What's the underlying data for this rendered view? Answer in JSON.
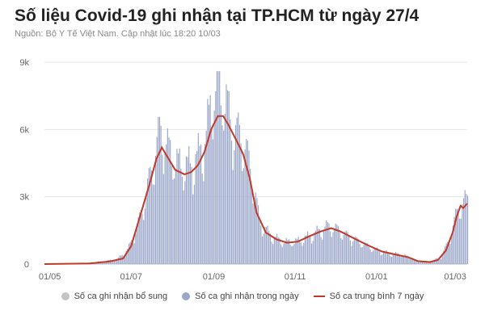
{
  "header": {
    "title": "Số liệu Covid-19 ghi nhận tại TP.HCM từ ngày 27/4",
    "source": "Nguồn: Bộ Y Tế Việt Nam. Cập nhật lúc 18:20 10/03"
  },
  "legend": [
    {
      "label": "Số ca ghi nhận bổ sung",
      "color": "#c4c4c4",
      "kind": "dot"
    },
    {
      "label": "Số ca ghi nhận trong ngày",
      "color": "#9aa7c9",
      "kind": "dot"
    },
    {
      "label": "Số ca trung bình 7 ngày",
      "color": "#c0392b",
      "kind": "line"
    }
  ],
  "chart_data": {
    "type": "bar",
    "x_start": "2021-04-27",
    "x_end": "2022-03-10",
    "ylim": [
      0,
      9000
    ],
    "y_ticks": [
      {
        "value": 0,
        "label": "0"
      },
      {
        "value": 3000,
        "label": "3k"
      },
      {
        "value": 6000,
        "label": "6k"
      },
      {
        "value": 9000,
        "label": "9k"
      }
    ],
    "x_ticks": [
      {
        "date": "2021-05-01",
        "label": "01/05"
      },
      {
        "date": "2021-07-01",
        "label": "01/07"
      },
      {
        "date": "2021-09-01",
        "label": "01/09"
      },
      {
        "date": "2021-11-01",
        "label": "01/11"
      },
      {
        "date": "2022-01-01",
        "label": "01/01"
      },
      {
        "date": "2022-03-01",
        "label": "01/03"
      }
    ],
    "grid": true,
    "legend_position": "bottom",
    "series": [
      {
        "name": "Số ca ghi nhận trong ngày",
        "color": "#9aa7c9",
        "points": [
          [
            "2021-04-27",
            0
          ],
          [
            "2021-05-15",
            10
          ],
          [
            "2021-05-31",
            60
          ],
          [
            "2021-06-10",
            120
          ],
          [
            "2021-06-20",
            200
          ],
          [
            "2021-06-28",
            600
          ],
          [
            "2021-07-05",
            1500
          ],
          [
            "2021-07-12",
            3000
          ],
          [
            "2021-07-18",
            4500
          ],
          [
            "2021-07-22",
            5600
          ],
          [
            "2021-07-26",
            5200
          ],
          [
            "2021-08-01",
            4400
          ],
          [
            "2021-08-08",
            4100
          ],
          [
            "2021-08-15",
            4200
          ],
          [
            "2021-08-20",
            4600
          ],
          [
            "2021-08-25",
            5200
          ],
          [
            "2021-08-29",
            6500
          ],
          [
            "2021-09-02",
            7500
          ],
          [
            "2021-09-06",
            7200
          ],
          [
            "2021-09-10",
            6800
          ],
          [
            "2021-09-15",
            5600
          ],
          [
            "2021-09-20",
            5500
          ],
          [
            "2021-09-25",
            4800
          ],
          [
            "2021-09-30",
            3500
          ],
          [
            "2021-10-05",
            1800
          ],
          [
            "2021-10-12",
            1300
          ],
          [
            "2021-10-20",
            1000
          ],
          [
            "2021-10-28",
            900
          ],
          [
            "2021-11-05",
            1000
          ],
          [
            "2021-11-15",
            1300
          ],
          [
            "2021-11-25",
            1600
          ],
          [
            "2021-12-01",
            1500
          ],
          [
            "2021-12-10",
            1200
          ],
          [
            "2021-12-20",
            900
          ],
          [
            "2021-12-31",
            600
          ],
          [
            "2022-01-10",
            450
          ],
          [
            "2022-01-20",
            400
          ],
          [
            "2022-01-31",
            150
          ],
          [
            "2022-02-10",
            100
          ],
          [
            "2022-02-18",
            300
          ],
          [
            "2022-02-24",
            1000
          ],
          [
            "2022-03-01",
            2000
          ],
          [
            "2022-03-05",
            2600
          ],
          [
            "2022-03-10",
            2700
          ]
        ]
      },
      {
        "name": "Số ca trung bình 7 ngày",
        "color": "#c0392b",
        "points": [
          [
            "2021-04-27",
            0
          ],
          [
            "2021-05-31",
            30
          ],
          [
            "2021-06-15",
            120
          ],
          [
            "2021-06-25",
            250
          ],
          [
            "2021-07-01",
            800
          ],
          [
            "2021-07-08",
            2200
          ],
          [
            "2021-07-15",
            3600
          ],
          [
            "2021-07-20",
            4700
          ],
          [
            "2021-07-24",
            5200
          ],
          [
            "2021-07-28",
            4800
          ],
          [
            "2021-08-03",
            4200
          ],
          [
            "2021-08-10",
            4000
          ],
          [
            "2021-08-15",
            4100
          ],
          [
            "2021-08-20",
            4400
          ],
          [
            "2021-08-25",
            5000
          ],
          [
            "2021-08-30",
            6000
          ],
          [
            "2021-09-04",
            6600
          ],
          [
            "2021-09-08",
            6600
          ],
          [
            "2021-09-12",
            6200
          ],
          [
            "2021-09-18",
            5500
          ],
          [
            "2021-09-23",
            4900
          ],
          [
            "2021-09-28",
            3800
          ],
          [
            "2021-10-03",
            2300
          ],
          [
            "2021-10-10",
            1400
          ],
          [
            "2021-10-18",
            1100
          ],
          [
            "2021-10-26",
            950
          ],
          [
            "2021-11-03",
            1000
          ],
          [
            "2021-11-12",
            1250
          ],
          [
            "2021-11-20",
            1450
          ],
          [
            "2021-11-28",
            1600
          ],
          [
            "2021-12-05",
            1450
          ],
          [
            "2021-12-15",
            1150
          ],
          [
            "2021-12-25",
            850
          ],
          [
            "2022-01-05",
            560
          ],
          [
            "2022-01-15",
            430
          ],
          [
            "2022-01-25",
            300
          ],
          [
            "2022-02-01",
            130
          ],
          [
            "2022-02-10",
            90
          ],
          [
            "2022-02-16",
            180
          ],
          [
            "2022-02-22",
            600
          ],
          [
            "2022-02-27",
            1400
          ],
          [
            "2022-03-02",
            2100
          ],
          [
            "2022-03-05",
            2600
          ],
          [
            "2022-03-07",
            2500
          ],
          [
            "2022-03-10",
            2700
          ]
        ]
      }
    ]
  }
}
